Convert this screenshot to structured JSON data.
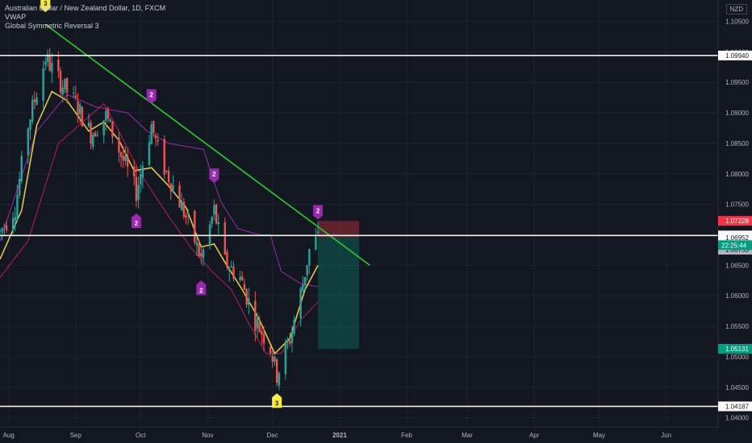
{
  "legend": {
    "symbol_line": "Australian Dollar / New Zealand Dollar, 1D, FXCM",
    "indicator_1": "VWAP",
    "indicator_2": "Global Symmetric Reversal 3"
  },
  "currency": "NZD",
  "colors": {
    "background": "#131722",
    "grid": "#1f2330",
    "up": "#26a69a",
    "down": "#ef5350",
    "trendline": "#2ad12a",
    "level_line": "#ffffff",
    "ma_yellow": "#f0d23a",
    "vwap": "#9c27b0",
    "band_red": "#c2185b",
    "marker_purple": "#9c27b0",
    "marker_yellow": "#ffeb3b",
    "stop_zone": "#f23645",
    "target_zone": "#089981"
  },
  "chart_data": {
    "type": "candlestick",
    "instrument": "AUDNZD",
    "timeframe": "1D",
    "ylim": [
      1.0385,
      1.1085
    ],
    "y_ticks": [
      1.04,
      1.045,
      1.05,
      1.055,
      1.06,
      1.065,
      1.07,
      1.075,
      1.08,
      1.085,
      1.09,
      1.095,
      1.1,
      1.105
    ],
    "y_tick_labels": [
      "1.04000",
      "1.04500",
      "1.05000",
      "1.05500",
      "1.06000",
      "1.06500",
      "1.07000",
      "1.07500",
      "1.08000",
      "1.08500",
      "1.09000",
      "1.09500",
      "1.10000",
      "1.10500"
    ],
    "x_range": [
      "2020-07-28",
      "2021-06-25"
    ],
    "x_ticks": [
      {
        "date": "2020-08-01",
        "label": "Aug"
      },
      {
        "date": "2020-09-01",
        "label": "Sep"
      },
      {
        "date": "2020-10-01",
        "label": "Oct"
      },
      {
        "date": "2020-11-01",
        "label": "Nov"
      },
      {
        "date": "2020-12-01",
        "label": "Dec"
      },
      {
        "date": "2021-01-01",
        "label": "2021"
      },
      {
        "date": "2021-02-01",
        "label": "Feb"
      },
      {
        "date": "2021-03-01",
        "label": "Mar"
      },
      {
        "date": "2021-04-01",
        "label": "Apr"
      },
      {
        "date": "2021-05-01",
        "label": "May"
      },
      {
        "date": "2021-06-01",
        "label": "Jun"
      }
    ],
    "price_path": [
      {
        "date": "2020-07-28",
        "close": 1.0705
      },
      {
        "date": "2020-08-04",
        "close": 1.0745
      },
      {
        "date": "2020-08-10",
        "close": 1.088
      },
      {
        "date": "2020-08-18",
        "close": 1.099
      },
      {
        "date": "2020-08-25",
        "close": 1.095
      },
      {
        "date": "2020-09-01",
        "close": 1.0915
      },
      {
        "date": "2020-09-08",
        "close": 1.0865
      },
      {
        "date": "2020-09-15",
        "close": 1.0895
      },
      {
        "date": "2020-09-22",
        "close": 1.083
      },
      {
        "date": "2020-09-29",
        "close": 1.077
      },
      {
        "date": "2020-10-06",
        "close": 1.088
      },
      {
        "date": "2020-10-10",
        "close": 1.0825
      },
      {
        "date": "2020-10-16",
        "close": 1.078
      },
      {
        "date": "2020-10-23",
        "close": 1.072
      },
      {
        "date": "2020-10-29",
        "close": 1.066
      },
      {
        "date": "2020-11-04",
        "close": 1.074
      },
      {
        "date": "2020-11-09",
        "close": 1.0655
      },
      {
        "date": "2020-11-16",
        "close": 1.063
      },
      {
        "date": "2020-11-23",
        "close": 1.056
      },
      {
        "date": "2020-11-30",
        "close": 1.0515
      },
      {
        "date": "2020-12-03",
        "close": 1.047
      },
      {
        "date": "2020-12-09",
        "close": 1.053
      },
      {
        "date": "2020-12-15",
        "close": 1.062
      },
      {
        "date": "2020-12-18",
        "close": 1.0675
      },
      {
        "date": "2020-12-22",
        "close": 1.0695
      }
    ],
    "moving_average": [
      {
        "date": "2020-07-28",
        "value": 1.066
      },
      {
        "date": "2020-08-07",
        "value": 1.074
      },
      {
        "date": "2020-08-14",
        "value": 1.088
      },
      {
        "date": "2020-08-21",
        "value": 1.0935
      },
      {
        "date": "2020-08-28",
        "value": 1.092
      },
      {
        "date": "2020-09-07",
        "value": 1.087
      },
      {
        "date": "2020-09-14",
        "value": 1.0885
      },
      {
        "date": "2020-09-21",
        "value": 1.0855
      },
      {
        "date": "2020-09-28",
        "value": 1.0805
      },
      {
        "date": "2020-10-06",
        "value": 1.081
      },
      {
        "date": "2020-10-14",
        "value": 1.078
      },
      {
        "date": "2020-10-22",
        "value": 1.0745
      },
      {
        "date": "2020-10-29",
        "value": 1.068
      },
      {
        "date": "2020-11-04",
        "value": 1.0685
      },
      {
        "date": "2020-11-09",
        "value": 1.0655
      },
      {
        "date": "2020-11-17",
        "value": 1.061
      },
      {
        "date": "2020-11-25",
        "value": 1.056
      },
      {
        "date": "2020-12-02",
        "value": 1.0505
      },
      {
        "date": "2020-12-09",
        "value": 1.053
      },
      {
        "date": "2020-12-16",
        "value": 1.061
      },
      {
        "date": "2020-12-22",
        "value": 1.065
      }
    ],
    "vwap": [
      {
        "date": "2020-07-28",
        "value": 1.069
      },
      {
        "date": "2020-08-14",
        "value": 1.087
      },
      {
        "date": "2020-08-28",
        "value": 1.093
      },
      {
        "date": "2020-09-10",
        "value": 1.091
      },
      {
        "date": "2020-09-25",
        "value": 1.09
      },
      {
        "date": "2020-10-04",
        "value": 1.087
      },
      {
        "date": "2020-10-14",
        "value": 1.085
      },
      {
        "date": "2020-10-30",
        "value": 1.084
      },
      {
        "date": "2020-11-07",
        "value": 1.0755
      },
      {
        "date": "2020-11-15",
        "value": 1.071
      },
      {
        "date": "2020-11-25",
        "value": 1.07
      },
      {
        "date": "2020-11-30",
        "value": 1.07
      },
      {
        "date": "2020-12-05",
        "value": 1.064
      },
      {
        "date": "2020-12-14",
        "value": 1.062
      },
      {
        "date": "2020-12-22",
        "value": 1.0615
      }
    ],
    "lower_band": [
      {
        "date": "2020-07-28",
        "value": 1.063
      },
      {
        "date": "2020-08-10",
        "value": 1.069
      },
      {
        "date": "2020-08-24",
        "value": 1.085
      },
      {
        "date": "2020-09-14",
        "value": 1.0915
      },
      {
        "date": "2020-09-21",
        "value": 1.087
      },
      {
        "date": "2020-10-01",
        "value": 1.08
      },
      {
        "date": "2020-10-14",
        "value": 1.073
      },
      {
        "date": "2020-10-24",
        "value": 1.068
      },
      {
        "date": "2020-11-03",
        "value": 1.064
      },
      {
        "date": "2020-11-12",
        "value": 1.061
      },
      {
        "date": "2020-11-20",
        "value": 1.0555
      },
      {
        "date": "2020-11-28",
        "value": 1.0505
      },
      {
        "date": "2020-12-05",
        "value": 1.0505
      },
      {
        "date": "2020-12-14",
        "value": 1.056
      },
      {
        "date": "2020-12-22",
        "value": 1.059
      }
    ],
    "trendline": {
      "x1": "2020-08-18",
      "y1": 1.1045,
      "x2": "2021-01-15",
      "y2": 1.065,
      "color": "#2ad12a"
    },
    "horizontal_levels": [
      1.0994,
      1.06989,
      1.04187
    ],
    "position_box": {
      "x_start": "2020-12-22",
      "x_end": "2021-01-10",
      "entry": 1.06952,
      "stop": 1.07228,
      "target": 1.05131
    },
    "markers": [
      {
        "date": "2020-08-18",
        "price": 1.1065,
        "label": "3",
        "color": "yellow",
        "side": "above"
      },
      {
        "date": "2020-10-06",
        "price": 1.0915,
        "label": "2",
        "color": "purple",
        "side": "above"
      },
      {
        "date": "2020-09-29",
        "price": 1.0735,
        "label": "2",
        "color": "purple",
        "side": "below"
      },
      {
        "date": "2020-11-04",
        "price": 1.0785,
        "label": "2",
        "color": "purple",
        "side": "above"
      },
      {
        "date": "2020-10-29",
        "price": 1.0625,
        "label": "2",
        "color": "purple",
        "side": "below"
      },
      {
        "date": "2020-12-03",
        "price": 1.044,
        "label": "3",
        "color": "yellow",
        "side": "below"
      },
      {
        "date": "2020-12-22",
        "price": 1.0725,
        "label": "2",
        "color": "purple",
        "side": "above"
      }
    ],
    "price_tags": [
      {
        "label": "1.09940",
        "value": 1.0994,
        "style": "white"
      },
      {
        "label": "1.07228",
        "value": 1.07228,
        "style": "red"
      },
      {
        "label": "1.06989",
        "value": 1.06989,
        "style": "white"
      },
      {
        "label": "1.06952",
        "value": 1.06952,
        "style": "white_small"
      },
      {
        "label": "1.06755",
        "value": 1.06755,
        "style": "gray"
      },
      {
        "label": "1.05131",
        "value": 1.05131,
        "style": "teal"
      },
      {
        "label": "1.04187",
        "value": 1.04187,
        "style": "white"
      }
    ],
    "countdown": {
      "label": "22:25:44"
    }
  }
}
